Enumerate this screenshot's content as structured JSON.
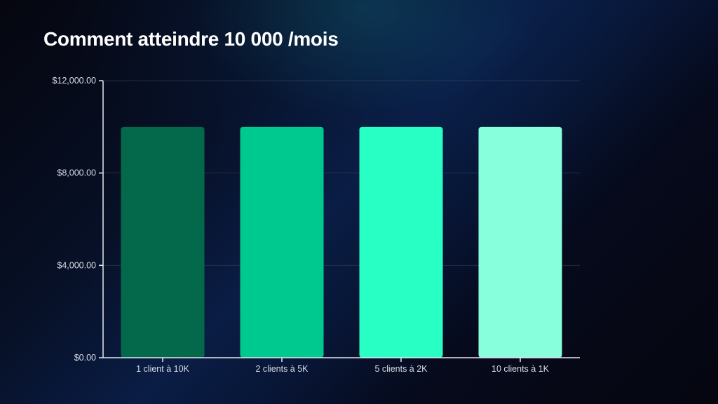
{
  "chart_data": {
    "type": "bar",
    "title": "Comment atteindre 10 000 /mois",
    "categories": [
      "1 client à 10K",
      "2 clients à 5K",
      "5 clients à 2K",
      "10 clients à 1K"
    ],
    "values": [
      10000,
      10000,
      10000,
      10000
    ],
    "colors": [
      "#04694a",
      "#00c98f",
      "#27ffc4",
      "#87ffdd"
    ],
    "ylim": [
      0,
      12000
    ],
    "yticks": [
      0,
      4000,
      8000,
      12000
    ],
    "ytick_labels": [
      "$0.00",
      "$4,000.00",
      "$8,000.00",
      "$12,000.00"
    ],
    "xlabel": "",
    "ylabel": "",
    "grid": true,
    "legend": "none"
  }
}
